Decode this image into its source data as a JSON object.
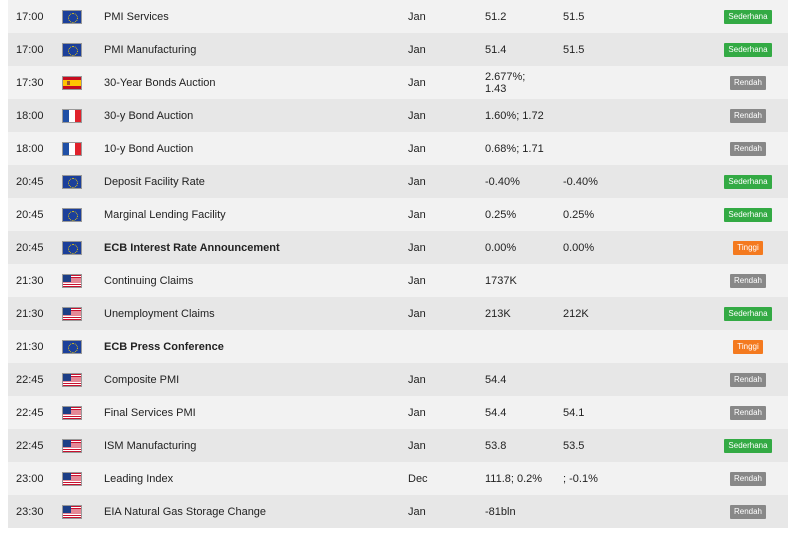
{
  "impact_colors": {
    "Sederhana": "#33aa44",
    "Rendah": "#888888",
    "Tinggi": "#f47a1f"
  },
  "rows": [
    {
      "time": "17:00",
      "flag": "eu",
      "event": "PMI Services",
      "period": "Jan",
      "actual": "51.2",
      "forecast": "51.5",
      "impact": "Sederhana",
      "bold": false
    },
    {
      "time": "17:00",
      "flag": "eu",
      "event": "PMI Manufacturing",
      "period": "Jan",
      "actual": "51.4",
      "forecast": "51.5",
      "impact": "Sederhana",
      "bold": false
    },
    {
      "time": "17:30",
      "flag": "es",
      "event": "30-Year Bonds Auction",
      "period": "Jan",
      "actual": "2.677%;\n1.43",
      "forecast": "",
      "impact": "Rendah",
      "bold": false
    },
    {
      "time": "18:00",
      "flag": "fr",
      "event": "30-y Bond Auction",
      "period": "Jan",
      "actual": "1.60%; 1.72",
      "forecast": "",
      "impact": "Rendah",
      "bold": false
    },
    {
      "time": "18:00",
      "flag": "fr",
      "event": "10-y Bond Auction",
      "period": "Jan",
      "actual": "0.68%; 1.71",
      "forecast": "",
      "impact": "Rendah",
      "bold": false
    },
    {
      "time": "20:45",
      "flag": "eu",
      "event": "Deposit Facility Rate",
      "period": "Jan",
      "actual": "-0.40%",
      "forecast": "-0.40%",
      "impact": "Sederhana",
      "bold": false
    },
    {
      "time": "20:45",
      "flag": "eu",
      "event": "Marginal Lending Facility",
      "period": "Jan",
      "actual": "0.25%",
      "forecast": "0.25%",
      "impact": "Sederhana",
      "bold": false
    },
    {
      "time": "20:45",
      "flag": "eu",
      "event": "ECB Interest Rate Announcement",
      "period": "Jan",
      "actual": "0.00%",
      "forecast": "0.00%",
      "impact": "Tinggi",
      "bold": true
    },
    {
      "time": "21:30",
      "flag": "us",
      "event": "Continuing Claims",
      "period": "Jan",
      "actual": "1737K",
      "forecast": "",
      "impact": "Rendah",
      "bold": false
    },
    {
      "time": "21:30",
      "flag": "us",
      "event": "Unemployment Claims",
      "period": "Jan",
      "actual": "213K",
      "forecast": "212K",
      "impact": "Sederhana",
      "bold": false
    },
    {
      "time": "21:30",
      "flag": "eu",
      "event": "ECB Press Conference",
      "period": "",
      "actual": "",
      "forecast": "",
      "impact": "Tinggi",
      "bold": true
    },
    {
      "time": "22:45",
      "flag": "us",
      "event": "Composite PMI",
      "period": "Jan",
      "actual": "54.4",
      "forecast": "",
      "impact": "Rendah",
      "bold": false
    },
    {
      "time": "22:45",
      "flag": "us",
      "event": "Final Services PMI",
      "period": "Jan",
      "actual": "54.4",
      "forecast": "54.1",
      "impact": "Rendah",
      "bold": false
    },
    {
      "time": "22:45",
      "flag": "us",
      "event": "ISM Manufacturing",
      "period": "Jan",
      "actual": "53.8",
      "forecast": "53.5",
      "impact": "Sederhana",
      "bold": false
    },
    {
      "time": "23:00",
      "flag": "us",
      "event": "Leading Index",
      "period": "Dec",
      "actual": "111.8; 0.2%",
      "forecast": "; -0.1%",
      "impact": "Rendah",
      "bold": false
    },
    {
      "time": "23:30",
      "flag": "us",
      "event": "EIA Natural Gas Storage Change",
      "period": "Jan",
      "actual": "-81bln",
      "forecast": "",
      "impact": "Rendah",
      "bold": false
    }
  ]
}
